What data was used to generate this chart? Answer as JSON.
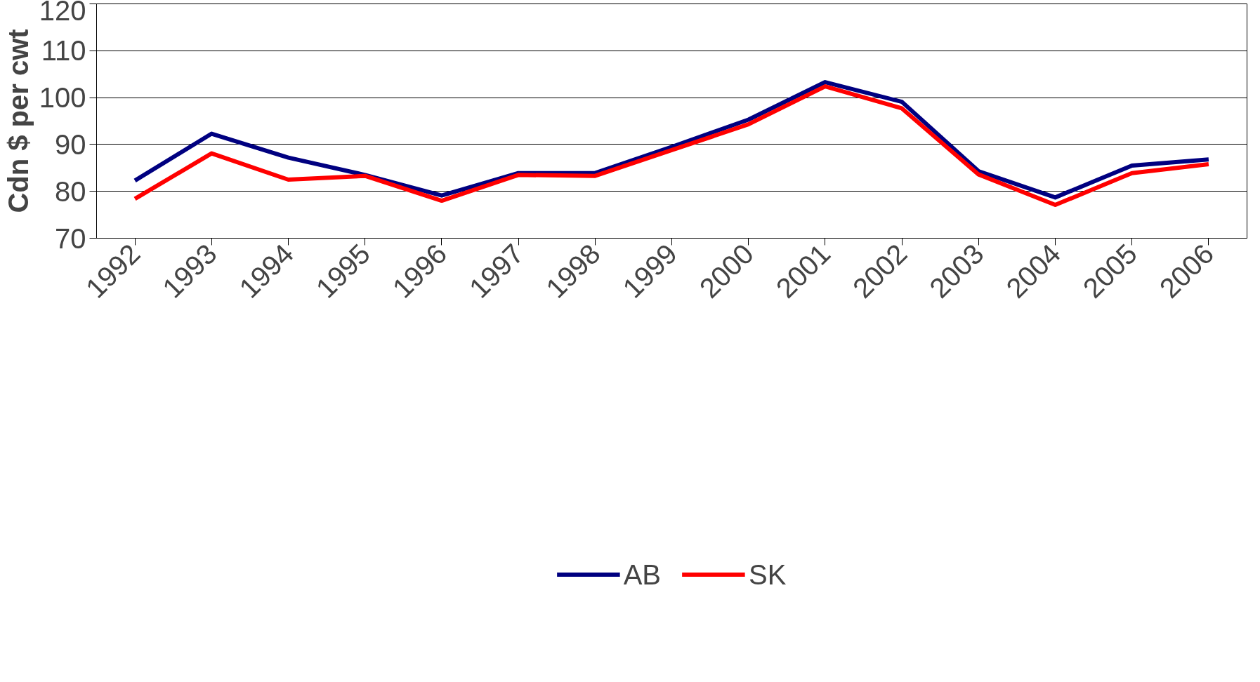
{
  "chart_data": {
    "type": "line",
    "ylabel": "Cdn $ per cwt",
    "categories": [
      "1992",
      "1993",
      "1994",
      "1995",
      "1996",
      "1997",
      "1998",
      "1999",
      "2000",
      "2001",
      "2002",
      "2003",
      "2004",
      "2005",
      "2006"
    ],
    "series": [
      {
        "name": "AB",
        "color": "#000080",
        "values": [
          82.3,
          92.3,
          87.2,
          83.5,
          79.1,
          83.9,
          83.9,
          89.5,
          95.3,
          103.3,
          99.1,
          84.3,
          78.7,
          85.5,
          86.8
        ]
      },
      {
        "name": "SK",
        "color": "#ff0000",
        "values": [
          78.4,
          88.1,
          82.5,
          83.3,
          78.0,
          83.5,
          83.3,
          88.8,
          94.3,
          102.4,
          97.7,
          83.6,
          77.1,
          83.9,
          85.8
        ]
      }
    ],
    "ylim": [
      70,
      120
    ],
    "yticks": [
      70,
      80,
      90,
      100,
      110,
      120
    ],
    "grid": "y",
    "legend": "bottom",
    "marker": "none",
    "line_style": "solid"
  }
}
